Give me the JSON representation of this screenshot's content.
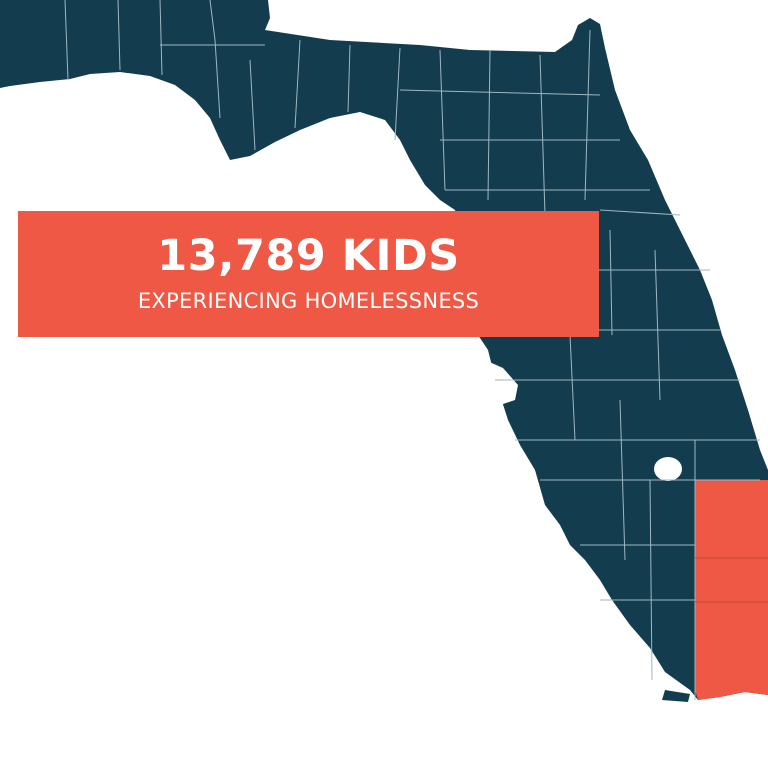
{
  "colors": {
    "state_fill": "#133d4f",
    "county_border": "#9fb7c2",
    "highlight": "#ee5845",
    "background": "#ffffff",
    "text": "#ffffff"
  },
  "banner": {
    "headline": "13,789 KIDS",
    "subline": "EXPERIENCING HOMELESSNESS"
  },
  "map": {
    "highlighted_region": "south-east counties"
  }
}
